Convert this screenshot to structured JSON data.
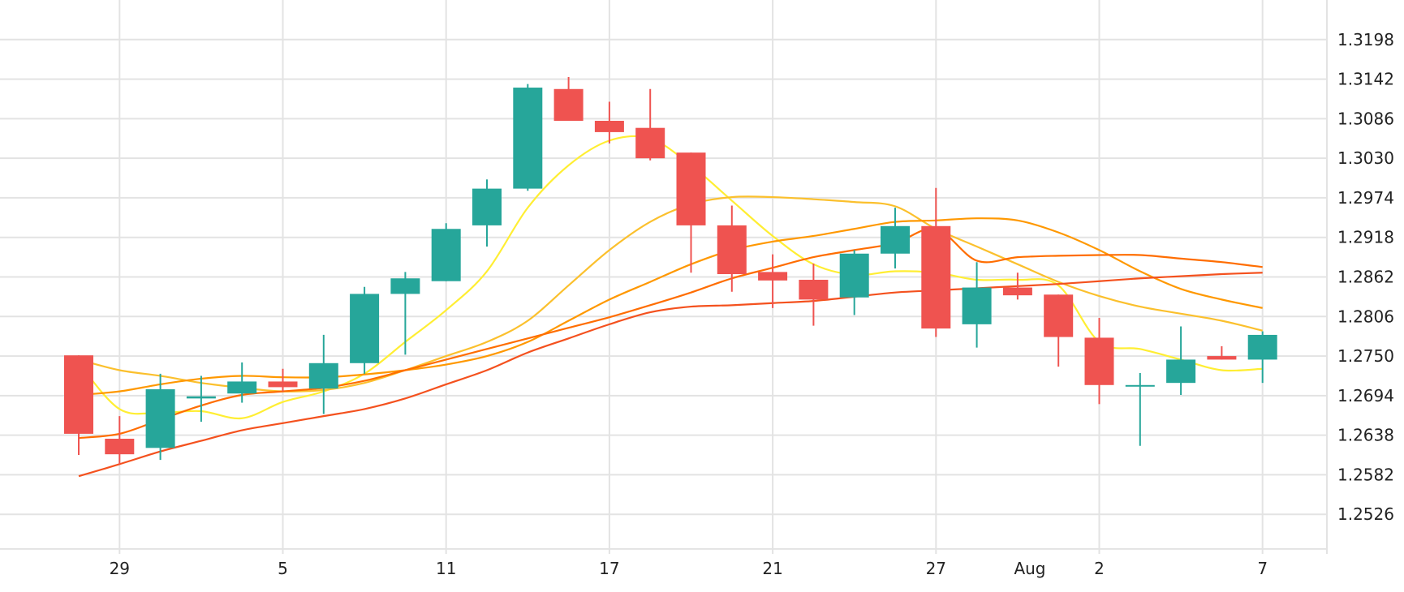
{
  "chart_data": {
    "type": "candlestick",
    "title": "",
    "xlabel": "",
    "ylabel": "",
    "ylim": [
      1.247,
      1.3254
    ],
    "y_ticks": [
      "1.2526",
      "1.2582",
      "1.2638",
      "1.2694",
      "1.2750",
      "1.2806",
      "1.2862",
      "1.2918",
      "1.2974",
      "1.3030",
      "1.3086",
      "1.3142",
      "1.3198"
    ],
    "x_ticks": [
      {
        "label": "29",
        "index": 1
      },
      {
        "label": "5",
        "index": 5
      },
      {
        "label": "11",
        "index": 9
      },
      {
        "label": "17",
        "index": 13
      },
      {
        "label": "21",
        "index": 17
      },
      {
        "label": "27",
        "index": 21
      },
      {
        "label": "Aug",
        "index": 23.3
      },
      {
        "label": "2",
        "index": 25
      },
      {
        "label": "7",
        "index": 29
      }
    ],
    "grid": true,
    "colors": {
      "up": "#26a69a",
      "down": "#ef5350",
      "grid": "#e3e3e3",
      "text": "#222222"
    },
    "candles": [
      {
        "o": 1.2751,
        "h": 1.2751,
        "l": 1.261,
        "c": 1.264
      },
      {
        "o": 1.2633,
        "h": 1.2665,
        "l": 1.2597,
        "c": 1.2611
      },
      {
        "o": 1.262,
        "h": 1.2725,
        "l": 1.2603,
        "c": 1.2703
      },
      {
        "o": 1.269,
        "h": 1.2722,
        "l": 1.2657,
        "c": 1.2693
      },
      {
        "o": 1.2697,
        "h": 1.2741,
        "l": 1.2684,
        "c": 1.2714
      },
      {
        "o": 1.2714,
        "h": 1.2732,
        "l": 1.27,
        "c": 1.2706
      },
      {
        "o": 1.2704,
        "h": 1.278,
        "l": 1.2668,
        "c": 1.274
      },
      {
        "o": 1.274,
        "h": 1.2848,
        "l": 1.2725,
        "c": 1.2838
      },
      {
        "o": 1.2838,
        "h": 1.2869,
        "l": 1.2752,
        "c": 1.286
      },
      {
        "o": 1.2856,
        "h": 1.2938,
        "l": 1.2856,
        "c": 1.293
      },
      {
        "o": 1.2935,
        "h": 1.3,
        "l": 1.2905,
        "c": 1.2987
      },
      {
        "o": 1.2987,
        "h": 1.3135,
        "l": 1.2984,
        "c": 1.313
      },
      {
        "o": 1.3128,
        "h": 1.3145,
        "l": 1.3085,
        "c": 1.3083
      },
      {
        "o": 1.3083,
        "h": 1.311,
        "l": 1.3051,
        "c": 1.3067
      },
      {
        "o": 1.3073,
        "h": 1.3128,
        "l": 1.3027,
        "c": 1.303
      },
      {
        "o": 1.3038,
        "h": 1.3038,
        "l": 1.2868,
        "c": 1.2935
      },
      {
        "o": 1.2935,
        "h": 1.2963,
        "l": 1.2841,
        "c": 1.2866
      },
      {
        "o": 1.2869,
        "h": 1.2894,
        "l": 1.2818,
        "c": 1.2857
      },
      {
        "o": 1.2858,
        "h": 1.2881,
        "l": 1.2793,
        "c": 1.283
      },
      {
        "o": 1.2833,
        "h": 1.29,
        "l": 1.2808,
        "c": 1.2895
      },
      {
        "o": 1.2895,
        "h": 1.296,
        "l": 1.2874,
        "c": 1.2934
      },
      {
        "o": 1.2934,
        "h": 1.2988,
        "l": 1.2777,
        "c": 1.2789
      },
      {
        "o": 1.2795,
        "h": 1.2883,
        "l": 1.2762,
        "c": 1.2847
      },
      {
        "o": 1.2847,
        "h": 1.2868,
        "l": 1.283,
        "c": 1.2836
      },
      {
        "o": 1.2837,
        "h": 1.2837,
        "l": 1.2735,
        "c": 1.2777
      },
      {
        "o": 1.2776,
        "h": 1.2804,
        "l": 1.2682,
        "c": 1.2709
      },
      {
        "o": 1.2709,
        "h": 1.2726,
        "l": 1.2623,
        "c": 1.2709
      },
      {
        "o": 1.2712,
        "h": 1.2792,
        "l": 1.2695,
        "c": 1.2745
      },
      {
        "o": 1.275,
        "h": 1.2764,
        "l": 1.2745,
        "c": 1.2745
      },
      {
        "o": 1.2745,
        "h": 1.2785,
        "l": 1.2712,
        "c": 1.278
      }
    ],
    "series": [
      {
        "color": "#ffee33",
        "points": [
          [
            0,
            1.274
          ],
          [
            1,
            1.2675
          ],
          [
            2,
            1.267
          ],
          [
            3,
            1.2672
          ],
          [
            4,
            1.2662
          ],
          [
            5,
            1.2685
          ],
          [
            6,
            1.27
          ],
          [
            7,
            1.2725
          ],
          [
            8,
            1.277
          ],
          [
            9,
            1.2815
          ],
          [
            10,
            1.287
          ],
          [
            11,
            1.296
          ],
          [
            12,
            1.302
          ],
          [
            13,
            1.3055
          ],
          [
            14,
            1.3058
          ],
          [
            15,
            1.302
          ],
          [
            16,
            1.297
          ],
          [
            17,
            1.292
          ],
          [
            18,
            1.288
          ],
          [
            19,
            1.2865
          ],
          [
            20,
            1.287
          ],
          [
            21,
            1.2868
          ],
          [
            22,
            1.2858
          ],
          [
            23,
            1.2858
          ],
          [
            24,
            1.285
          ],
          [
            25,
            1.277
          ],
          [
            26,
            1.276
          ],
          [
            27,
            1.2745
          ],
          [
            28,
            1.273
          ],
          [
            29,
            1.2732
          ]
        ]
      },
      {
        "color": "#fbc02d",
        "points": [
          [
            0,
            1.2745
          ],
          [
            1,
            1.273
          ],
          [
            2,
            1.2722
          ],
          [
            3,
            1.2712
          ],
          [
            4,
            1.2705
          ],
          [
            5,
            1.27
          ],
          [
            6,
            1.2702
          ],
          [
            7,
            1.2712
          ],
          [
            8,
            1.273
          ],
          [
            9,
            1.275
          ],
          [
            10,
            1.277
          ],
          [
            11,
            1.28
          ],
          [
            12,
            1.285
          ],
          [
            13,
            1.29
          ],
          [
            14,
            1.294
          ],
          [
            15,
            1.2965
          ],
          [
            16,
            1.2975
          ],
          [
            17,
            1.2975
          ],
          [
            18,
            1.2972
          ],
          [
            19,
            1.2968
          ],
          [
            20,
            1.2962
          ],
          [
            21,
            1.293
          ],
          [
            22,
            1.2905
          ],
          [
            23,
            1.288
          ],
          [
            24,
            1.2855
          ],
          [
            25,
            1.2835
          ],
          [
            26,
            1.282
          ],
          [
            27,
            1.281
          ],
          [
            28,
            1.28
          ],
          [
            29,
            1.2786
          ]
        ]
      },
      {
        "color": "#ff9800",
        "points": [
          [
            0,
            1.2695
          ],
          [
            1,
            1.27
          ],
          [
            2,
            1.271
          ],
          [
            3,
            1.2718
          ],
          [
            4,
            1.2722
          ],
          [
            5,
            1.272
          ],
          [
            6,
            1.272
          ],
          [
            7,
            1.2724
          ],
          [
            8,
            1.273
          ],
          [
            9,
            1.2738
          ],
          [
            10,
            1.275
          ],
          [
            11,
            1.277
          ],
          [
            12,
            1.28
          ],
          [
            13,
            1.283
          ],
          [
            14,
            1.2855
          ],
          [
            15,
            1.288
          ],
          [
            16,
            1.29
          ],
          [
            17,
            1.2912
          ],
          [
            18,
            1.292
          ],
          [
            19,
            1.293
          ],
          [
            20,
            1.294
          ],
          [
            21,
            1.2942
          ],
          [
            22,
            1.2945
          ],
          [
            23,
            1.2942
          ],
          [
            24,
            1.2925
          ],
          [
            25,
            1.29
          ],
          [
            26,
            1.287
          ],
          [
            27,
            1.2845
          ],
          [
            28,
            1.283
          ],
          [
            29,
            1.2818
          ]
        ]
      },
      {
        "color": "#ff6d00",
        "points": [
          [
            0,
            1.2634
          ],
          [
            1,
            1.264
          ],
          [
            2,
            1.266
          ],
          [
            3,
            1.268
          ],
          [
            4,
            1.2695
          ],
          [
            5,
            1.27
          ],
          [
            6,
            1.2705
          ],
          [
            7,
            1.2715
          ],
          [
            8,
            1.273
          ],
          [
            9,
            1.2745
          ],
          [
            10,
            1.276
          ],
          [
            11,
            1.2775
          ],
          [
            12,
            1.279
          ],
          [
            13,
            1.2805
          ],
          [
            14,
            1.2822
          ],
          [
            15,
            1.284
          ],
          [
            16,
            1.286
          ],
          [
            17,
            1.2875
          ],
          [
            18,
            1.289
          ],
          [
            19,
            1.29
          ],
          [
            20,
            1.291
          ],
          [
            21,
            1.293
          ],
          [
            22,
            1.2885
          ],
          [
            23,
            1.289
          ],
          [
            24,
            1.2892
          ],
          [
            25,
            1.2893
          ],
          [
            26,
            1.2893
          ],
          [
            27,
            1.2888
          ],
          [
            28,
            1.2883
          ],
          [
            29,
            1.2876
          ]
        ]
      },
      {
        "color": "#f4511e",
        "points": [
          [
            0,
            1.258
          ],
          [
            1,
            1.2597
          ],
          [
            2,
            1.2615
          ],
          [
            3,
            1.263
          ],
          [
            4,
            1.2645
          ],
          [
            5,
            1.2655
          ],
          [
            6,
            1.2665
          ],
          [
            7,
            1.2675
          ],
          [
            8,
            1.269
          ],
          [
            9,
            1.271
          ],
          [
            10,
            1.273
          ],
          [
            11,
            1.2755
          ],
          [
            12,
            1.2775
          ],
          [
            13,
            1.2795
          ],
          [
            14,
            1.2812
          ],
          [
            15,
            1.282
          ],
          [
            16,
            1.2822
          ],
          [
            17,
            1.2825
          ],
          [
            18,
            1.2828
          ],
          [
            19,
            1.2834
          ],
          [
            20,
            1.284
          ],
          [
            21,
            1.2843
          ],
          [
            22,
            1.2846
          ],
          [
            23,
            1.2849
          ],
          [
            24,
            1.2852
          ],
          [
            25,
            1.2856
          ],
          [
            26,
            1.286
          ],
          [
            27,
            1.2863
          ],
          [
            28,
            1.2866
          ],
          [
            29,
            1.2868
          ]
        ]
      }
    ]
  }
}
